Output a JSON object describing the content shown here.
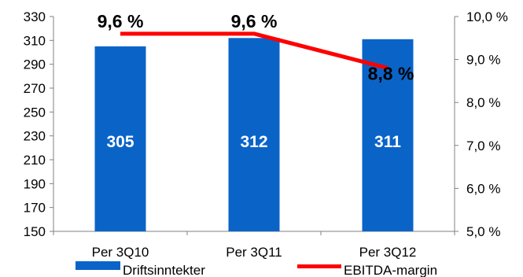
{
  "chart_data": {
    "type": "bar",
    "categories": [
      "Per 3Q10",
      "Per 3Q11",
      "Per 3Q12"
    ],
    "series": [
      {
        "name": "Driftsinntekter",
        "type": "bar",
        "axis": "left",
        "color": "#0a64c8",
        "values": [
          305,
          312,
          311
        ],
        "labels": [
          "305",
          "312",
          "311"
        ]
      },
      {
        "name": "EBITDA-margin",
        "type": "line",
        "axis": "right",
        "color": "#ff0000",
        "values": [
          9.6,
          9.6,
          8.8
        ],
        "labels": [
          "9,6 %",
          "9,6 %",
          "8,8 %"
        ]
      }
    ],
    "y_left": {
      "ylim": [
        150,
        330
      ],
      "ticks": [
        "150",
        "170",
        "190",
        "210",
        "230",
        "250",
        "270",
        "290",
        "310",
        "330"
      ]
    },
    "y_right": {
      "ylim": [
        5.0,
        10.0
      ],
      "ticks": [
        "5,0 %",
        "6,0 %",
        "7,0 %",
        "8,0 %",
        "9,0 %",
        "10,0 %"
      ]
    },
    "grid": false,
    "legend_position": "bottom"
  }
}
